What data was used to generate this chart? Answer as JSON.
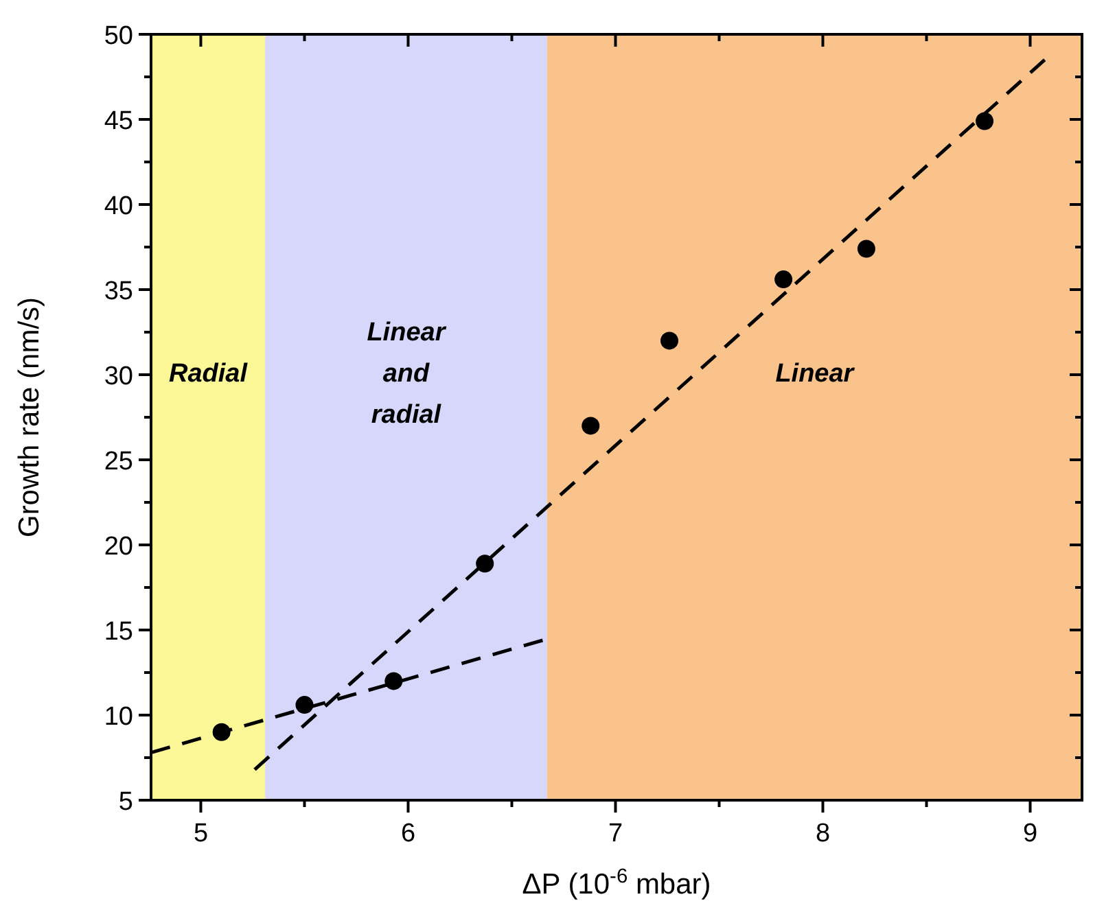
{
  "chart_data": {
    "type": "scatter",
    "xlabel": "ΔP (10$^{-6}$ mbar)",
    "ylabel": "Growth rate (nm/s)",
    "xlim": [
      4.76,
      9.25
    ],
    "xticks": [
      5,
      {
        "value": 5.5,
        "label": null
      },
      6,
      {
        "value": 6.5,
        "label": null
      },
      7,
      {
        "value": 7.5,
        "label": null
      },
      8,
      {
        "value": 8.5,
        "label": null
      },
      9
    ],
    "ylim": [
      5,
      50
    ],
    "yticks": [
      5,
      {
        "value": 7.5,
        "label": null
      },
      10,
      {
        "value": 12.5,
        "label": null
      },
      15,
      {
        "value": 17.5,
        "label": null
      },
      20,
      {
        "value": 22.5,
        "label": null
      },
      25,
      {
        "value": 27.5,
        "label": null
      },
      30,
      {
        "value": 32.5,
        "label": null
      },
      35,
      {
        "value": 37.5,
        "label": null
      },
      40,
      {
        "value": 42.5,
        "label": null
      },
      45,
      {
        "value": 47.5,
        "label": null
      },
      50
    ],
    "bands": [
      {
        "axis": "x",
        "from": 4.76,
        "to": 5.31,
        "label": "Radial",
        "color": "#fcf797"
      },
      {
        "axis": "x",
        "from": 5.31,
        "to": 6.67,
        "label": "Linear and radial",
        "color": "#d7d7fb"
      },
      {
        "axis": "x",
        "from": 6.67,
        "to": 9.25,
        "label": "Linear",
        "color": "#fac38c"
      }
    ],
    "series": [
      {
        "color": "#000000",
        "marker": "circle",
        "x": [
          5.1,
          5.5,
          5.93,
          6.37,
          6.88,
          7.26,
          7.81,
          8.21,
          8.78
        ],
        "values": [
          9.0,
          10.6,
          12.0,
          18.9,
          27.0,
          32.0,
          35.6,
          37.4,
          44.9
        ]
      },
      {
        "type": "line",
        "color": "#000000",
        "line_style": "dashed",
        "x": [
          4.76,
          6.65
        ],
        "values": [
          7.8,
          14.4
        ]
      },
      {
        "type": "line",
        "color": "#000000",
        "line_style": "dashed",
        "x": [
          5.26,
          9.07
        ],
        "values": [
          6.8,
          48.5
        ]
      }
    ]
  }
}
